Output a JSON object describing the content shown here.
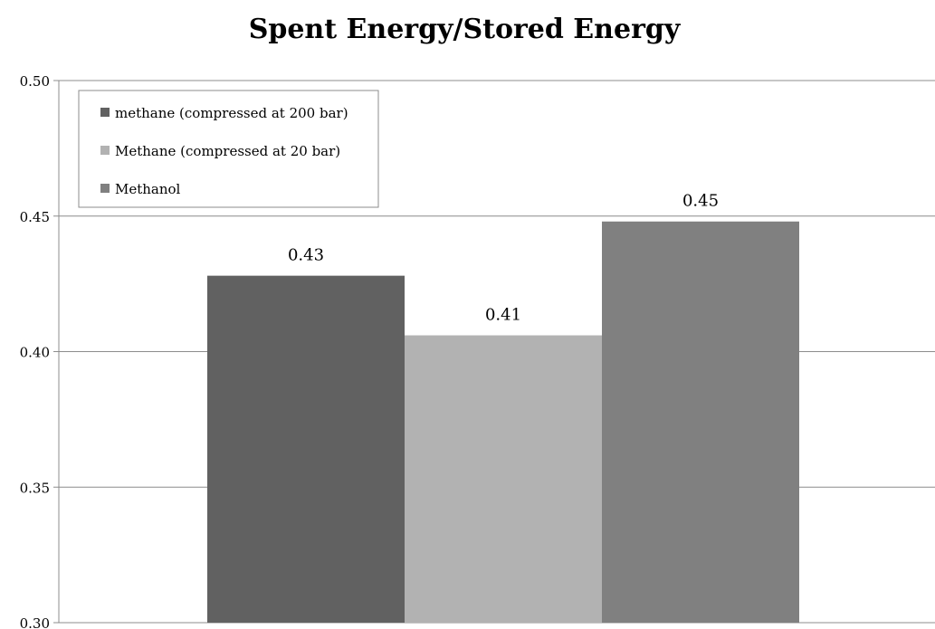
{
  "chart_data": {
    "type": "bar",
    "title": "Spent Energy/Stored Energy",
    "xlabel": "",
    "ylabel": "",
    "ylim": [
      0.3,
      0.5
    ],
    "yticks": [
      "0.50",
      "0.45",
      "0.40",
      "0.35",
      "0.30"
    ],
    "grid": true,
    "legend_position": "top-left",
    "series": [
      {
        "name": "methane (compressed at 200 bar)",
        "value": 0.428,
        "data_label": "0.43",
        "color": "#616161"
      },
      {
        "name": "Methane (compressed at 20 bar)",
        "value": 0.406,
        "data_label": "0.41",
        "color": "#b2b2b2"
      },
      {
        "name": "Methanol",
        "value": 0.448,
        "data_label": "0.45",
        "color": "#808080"
      }
    ]
  }
}
